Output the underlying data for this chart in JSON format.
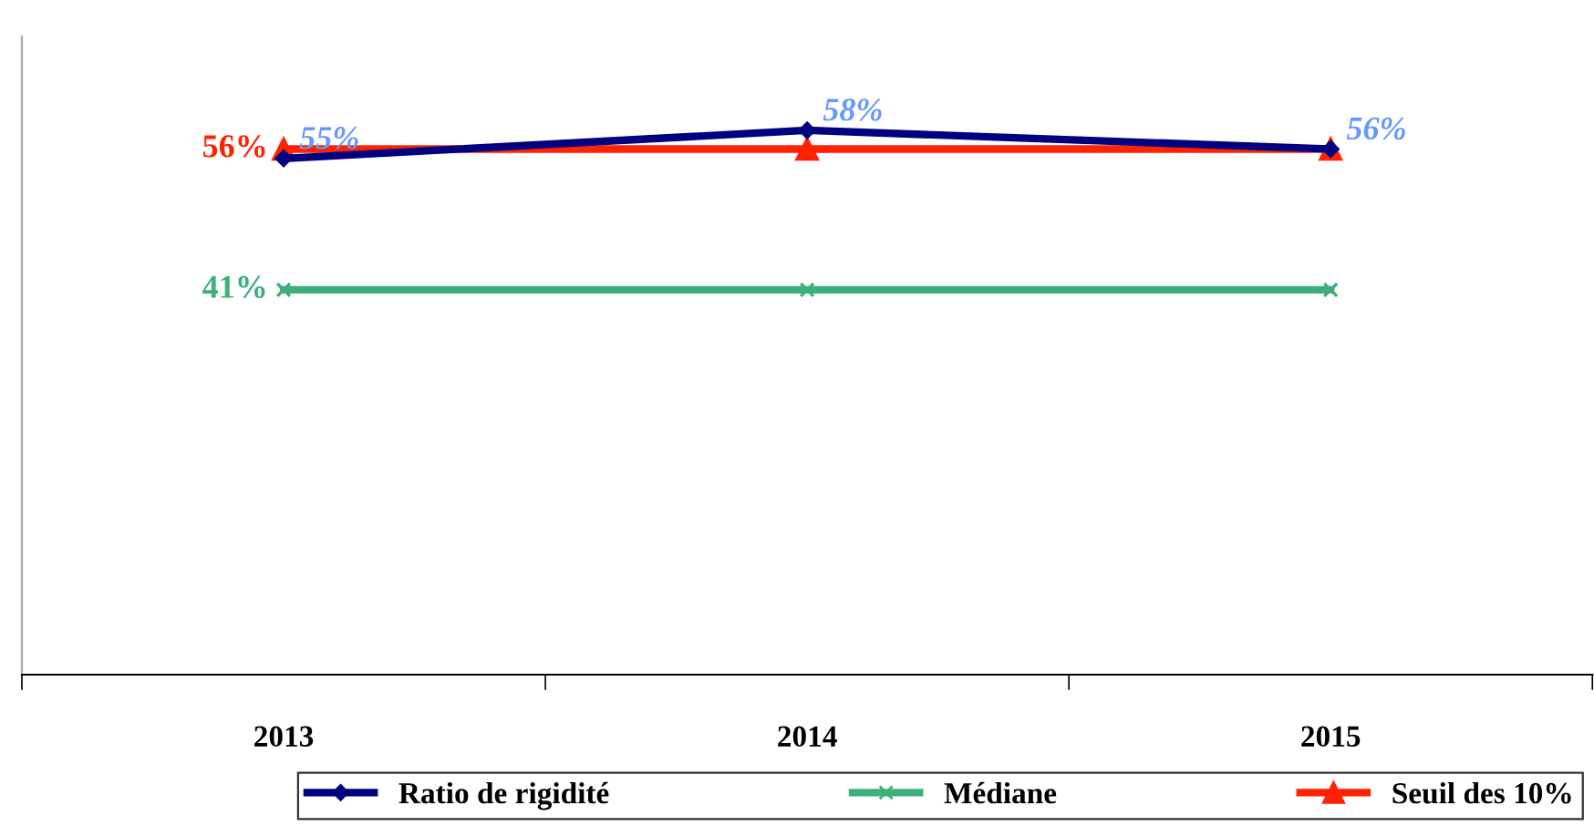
{
  "chart_data": {
    "type": "line",
    "categories": [
      "2013",
      "2014",
      "2015"
    ],
    "ylim": [
      0,
      68
    ],
    "tick_labels": "x",
    "grid": false,
    "legend": "bottom",
    "series": [
      {
        "name": "Ratio de rigidité",
        "color": "#000080",
        "marker": "diamond",
        "values": [
          55,
          58,
          56
        ],
        "value_labels": [
          "55%",
          "58%",
          "56%"
        ]
      },
      {
        "name": "Médiane",
        "color": "#3cb07a",
        "marker": "cross",
        "values": [
          41,
          41,
          41
        ],
        "value_labels": [
          "41%",
          null,
          null
        ]
      },
      {
        "name": "Seuil des 10%",
        "color": "#ff2200",
        "marker": "triangle",
        "values": [
          56,
          56,
          56
        ],
        "value_labels": [
          "56%",
          null,
          null
        ]
      }
    ]
  }
}
